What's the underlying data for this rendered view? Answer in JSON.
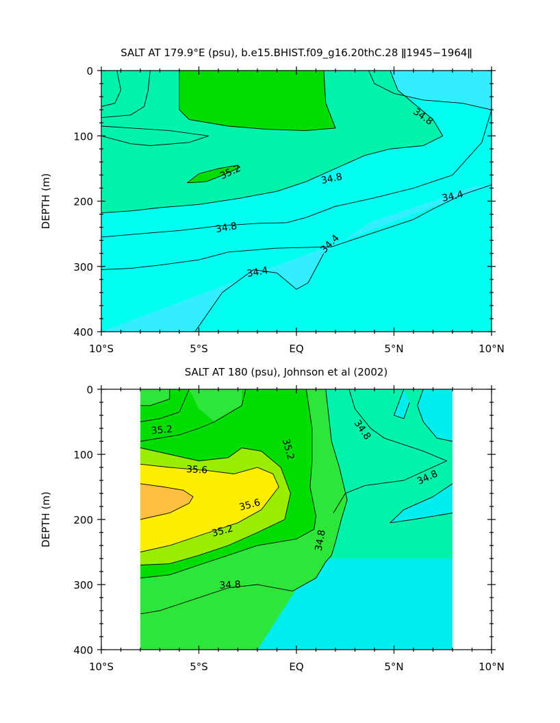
{
  "chart_data": [
    {
      "type": "contour",
      "title": "SALT AT 179.9°E (psu), b.e15.BHIST.f09_g16.20thC.28 ǁ1945−1964ǁ",
      "ylabel": "DEPTH (m)",
      "xlabel": "",
      "xlim": [
        -10,
        10
      ],
      "ylim": [
        400,
        0
      ],
      "x_ticks": [
        "10°S",
        "5°S",
        "EQ",
        "5°N",
        "10°N"
      ],
      "x_tick_values": [
        -10,
        -5,
        0,
        5,
        10
      ],
      "y_ticks": [
        "0",
        "100",
        "200",
        "300",
        "400"
      ],
      "y_tick_values": [
        0,
        100,
        200,
        300,
        400
      ],
      "data_extent_x": [
        -10,
        10
      ],
      "colors": {
        "lt34_4": "#33eeff",
        "34_4_34_8": "#00ffee",
        "34_8_35_2": "#00f3a8",
        "35_2_35_6": "#2ee53a",
        "gt35_6": "#00dd00"
      },
      "contour_labels": [
        {
          "text": "34.8",
          "x": 6.5,
          "y": 70,
          "rot": 35
        },
        {
          "text": "35.2",
          "x": -3.4,
          "y": 155,
          "rot": -25
        },
        {
          "text": "34.8",
          "x": 1.8,
          "y": 165,
          "rot": -12
        },
        {
          "text": "34.8",
          "x": -3.6,
          "y": 240,
          "rot": -10
        },
        {
          "text": "34.4",
          "x": 8.0,
          "y": 192,
          "rot": -12
        },
        {
          "text": "34.4",
          "x": 1.7,
          "y": 265,
          "rot": -45
        },
        {
          "text": "34.4",
          "x": -2.0,
          "y": 308,
          "rot": -10
        }
      ]
    },
    {
      "type": "contour",
      "title": "SALT AT 180 (psu), Johnson et al (2002)",
      "ylabel": "DEPTH (m)",
      "xlabel": "",
      "xlim": [
        -10,
        10
      ],
      "ylim": [
        400,
        0
      ],
      "x_ticks": [
        "10°S",
        "5°S",
        "EQ",
        "5°N",
        "10°N"
      ],
      "x_tick_values": [
        -10,
        -5,
        0,
        5,
        10
      ],
      "y_ticks": [
        "0",
        "100",
        "200",
        "300",
        "400"
      ],
      "y_tick_values": [
        0,
        100,
        200,
        300,
        400
      ],
      "data_extent_x": [
        -8,
        8
      ],
      "colors": {
        "lt34_8": "#00eeee",
        "34_8_35_0": "#00f3a8",
        "35_0_35_2": "#2ee53a",
        "35_2_35_4": "#00dd00",
        "35_4_35_6": "#99ee00",
        "35_6_35_8": "#ffee00",
        "gt35_8": "#ffc040"
      },
      "contour_labels": [
        {
          "text": "35.2",
          "x": -6.9,
          "y": 62,
          "rot": -5
        },
        {
          "text": "35.2",
          "x": -0.4,
          "y": 92,
          "rot": 75
        },
        {
          "text": "34.8",
          "x": 3.4,
          "y": 62,
          "rot": 55
        },
        {
          "text": "34.8",
          "x": 6.7,
          "y": 135,
          "rot": -25
        },
        {
          "text": "35.6",
          "x": -5.1,
          "y": 123,
          "rot": 3
        },
        {
          "text": "35.6",
          "x": -2.4,
          "y": 177,
          "rot": -15
        },
        {
          "text": "35.2",
          "x": -3.8,
          "y": 217,
          "rot": -15
        },
        {
          "text": "34.8",
          "x": 1.2,
          "y": 232,
          "rot": -80
        },
        {
          "text": "34.8",
          "x": -3.4,
          "y": 300,
          "rot": -3
        }
      ]
    }
  ]
}
